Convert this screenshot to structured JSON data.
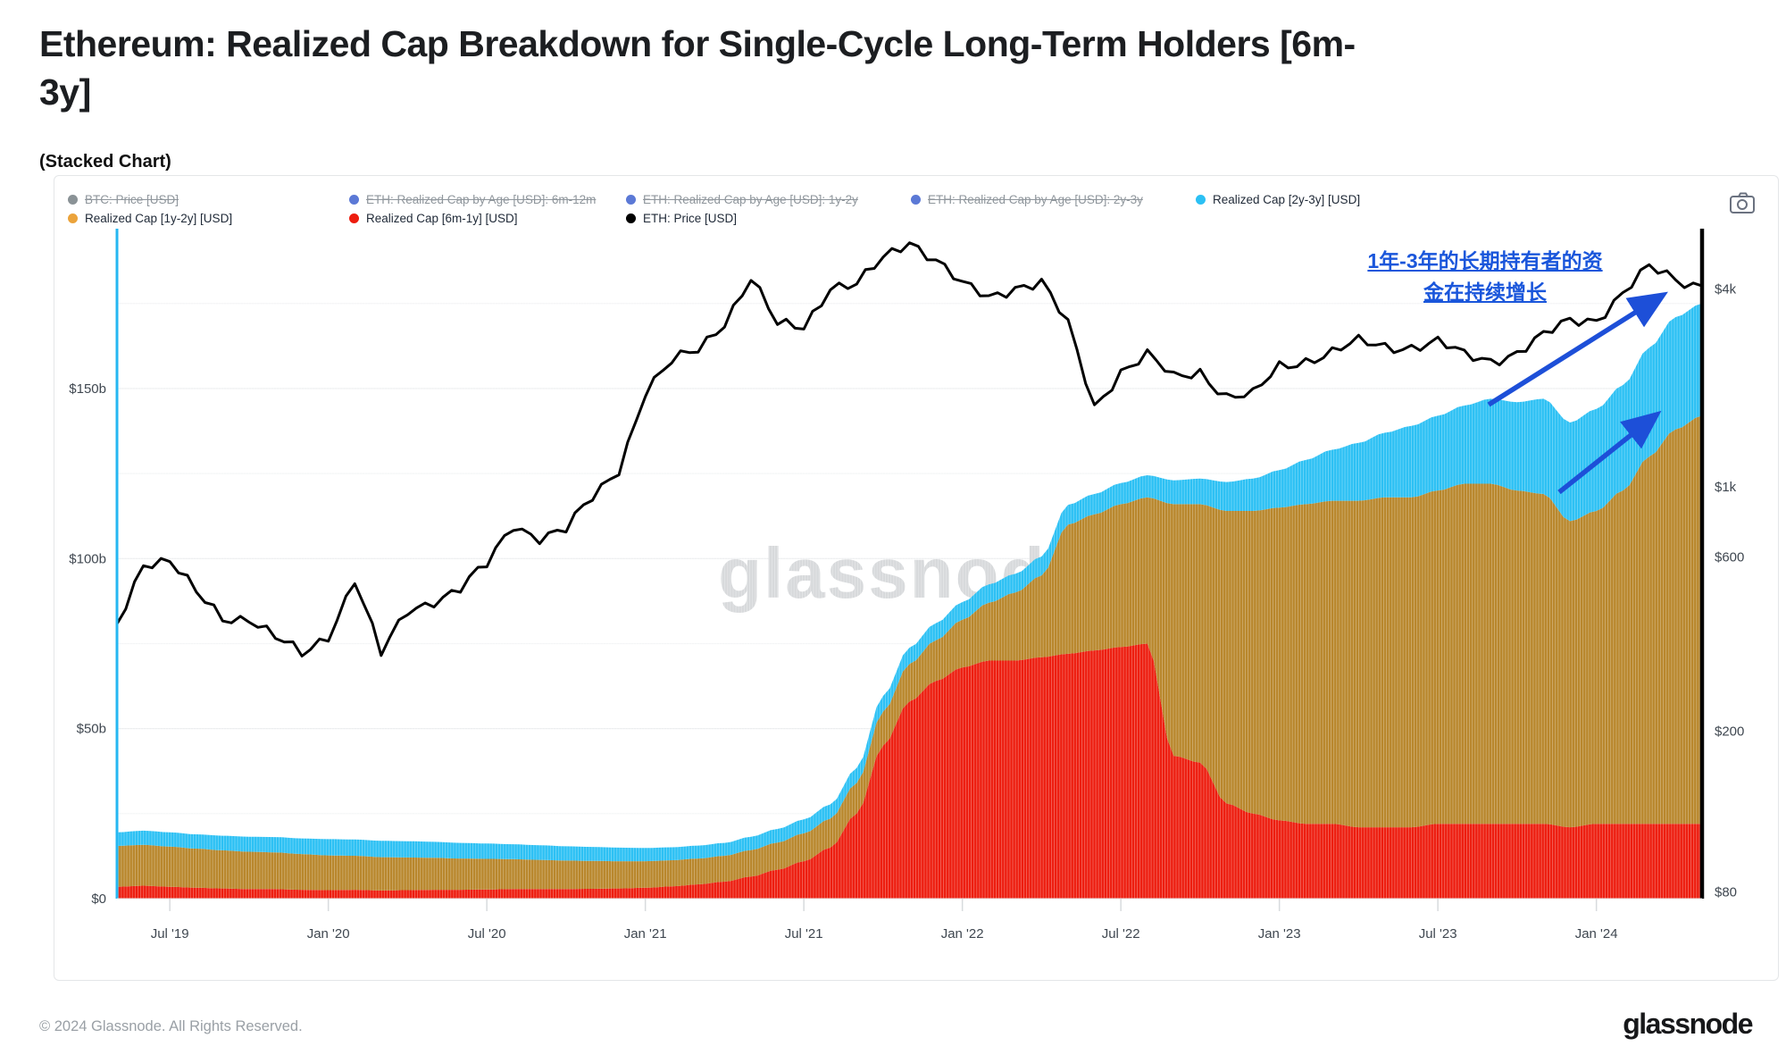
{
  "page": {
    "title": "Ethereum: Realized Cap Breakdown for Single-Cycle Long-Term Holders [6m-3y]",
    "chart_type_label": "(Stacked Chart)"
  },
  "footer": {
    "copyright": "© 2024 Glassnode. All Rights Reserved.",
    "brand": "glassnode"
  },
  "watermark": "glassnode",
  "annotation": {
    "text": "1年-3年的长期持有者的资金在持续增长",
    "line1": "1年-3年的长期持有者的资",
    "line2": "金在持续增长",
    "color": "#1a56db"
  },
  "colors": {
    "red": "#ed1c0e",
    "gold": "#b8862b",
    "cyan": "#2bc0f4",
    "price_line": "#000000",
    "annotation_blue": "#1d4fd8",
    "left_spine": "#25b7f2",
    "watermark_gray": "#d7d9db"
  },
  "legend": {
    "rows": [
      [
        {
          "label": "BTC: Price [USD]",
          "color": "#8a9296",
          "struck": true
        },
        {
          "label": "ETH: Realized Cap by Age [USD]: 6m-12m",
          "color": "#5b79d6",
          "struck": true
        },
        {
          "label": "ETH: Realized Cap by Age [USD]: 1y-2y",
          "color": "#5b79d6",
          "struck": true
        },
        {
          "label": "ETH: Realized Cap by Age [USD]: 2y-3y",
          "color": "#5b79d6",
          "struck": true
        },
        {
          "label": "Realized Cap [2y-3y] [USD]",
          "color": "#2bc0f4",
          "struck": false
        }
      ],
      [
        {
          "label": "Realized Cap [1y-2y] [USD]",
          "color": "#eba33b",
          "struck": false
        },
        {
          "label": "Realized Cap [6m-1y] [USD]",
          "color": "#ed1c0e",
          "struck": false
        },
        {
          "label": "ETH: Price [USD]",
          "color": "#000000",
          "struck": false
        }
      ]
    ]
  },
  "chart_data": {
    "type": "area",
    "subtype": "stacked-area-with-log-price-line",
    "title": "Ethereum: Realized Cap Breakdown for Single-Cycle Long-Term Holders [6m-3y]",
    "units": "billions USD (left axis), ETH price USD (right axis, log)",
    "left_axis": {
      "max": 197,
      "ticks": [
        {
          "value": 0,
          "label": "$0"
        },
        {
          "value": 50,
          "label": "$50b"
        },
        {
          "value": 100,
          "label": "$100b"
        },
        {
          "value": 150,
          "label": "$150b"
        }
      ]
    },
    "right_axis": {
      "scale": "log",
      "tick_labels": [
        "$4k",
        "$1k",
        "$600",
        "$200",
        "$80"
      ]
    },
    "x_ticks": [
      {
        "label": "Jul '19",
        "index": 2
      },
      {
        "label": "Jan '20",
        "index": 8
      },
      {
        "label": "Jul '20",
        "index": 14
      },
      {
        "label": "Jan '21",
        "index": 20
      },
      {
        "label": "Jul '21",
        "index": 26
      },
      {
        "label": "Jan '22",
        "index": 32
      },
      {
        "label": "Jul '22",
        "index": 38
      },
      {
        "label": "Jan '23",
        "index": 44
      },
      {
        "label": "Jul '23",
        "index": 50
      },
      {
        "label": "Jan '24",
        "index": 56
      }
    ],
    "categories": [
      "2019-05",
      "2019-06",
      "2019-07",
      "2019-08",
      "2019-09",
      "2019-10",
      "2019-11",
      "2019-12",
      "2020-01",
      "2020-02",
      "2020-03",
      "2020-04",
      "2020-05",
      "2020-06",
      "2020-07",
      "2020-08",
      "2020-09",
      "2020-10",
      "2020-11",
      "2020-12",
      "2021-01",
      "2021-02",
      "2021-03",
      "2021-04",
      "2021-05",
      "2021-06",
      "2021-07",
      "2021-08",
      "2021-09",
      "2021-10",
      "2021-11",
      "2021-12",
      "2022-01",
      "2022-02",
      "2022-03",
      "2022-04",
      "2022-05",
      "2022-06",
      "2022-07",
      "2022-08",
      "2022-09",
      "2022-10",
      "2022-11",
      "2022-12",
      "2023-01",
      "2023-02",
      "2023-03",
      "2023-04",
      "2023-05",
      "2023-06",
      "2023-07",
      "2023-08",
      "2023-09",
      "2023-10",
      "2023-11",
      "2023-12",
      "2024-01",
      "2024-02",
      "2024-03",
      "2024-04",
      "2024-05"
    ],
    "series": [
      {
        "name": "Realized Cap [6m-1y] [USD]",
        "color": "#ed1c0e",
        "stack": 1,
        "values": [
          3.5,
          3.8,
          3.5,
          3.2,
          3.0,
          2.8,
          2.8,
          2.6,
          2.5,
          2.6,
          2.4,
          2.5,
          2.6,
          2.6,
          2.7,
          2.8,
          2.8,
          2.8,
          2.9,
          3.0,
          3.2,
          3.6,
          4.2,
          5.0,
          6.5,
          8.5,
          11,
          15,
          25,
          45,
          58,
          64,
          68,
          70,
          70,
          71,
          72,
          73,
          74,
          75,
          42,
          40,
          28,
          25,
          23,
          22,
          22,
          21,
          21,
          21,
          22,
          22,
          22,
          22,
          22,
          21,
          22,
          22,
          22,
          22,
          22
        ]
      },
      {
        "name": "Realized Cap [1y-2y] [USD]",
        "color": "#b8862b",
        "stack": 2,
        "values": [
          12,
          12,
          11.8,
          11.5,
          11.2,
          11,
          10.8,
          10.5,
          10.2,
          10,
          9.8,
          9.6,
          9.4,
          9.2,
          9,
          8.8,
          8.6,
          8.4,
          8.2,
          8,
          7.8,
          7.7,
          7.6,
          7.6,
          7.8,
          8,
          8.2,
          8.5,
          9,
          10,
          11,
          12,
          14,
          17,
          20,
          24,
          38,
          40,
          42,
          43,
          74,
          76,
          86,
          89,
          92,
          94,
          95,
          96,
          97,
          97,
          98,
          100,
          100,
          98,
          97,
          90,
          92,
          98,
          108,
          116,
          120
        ]
      },
      {
        "name": "Realized Cap [2y-3y] [USD]",
        "color": "#2bc0f4",
        "stack": 3,
        "values": [
          4,
          4.2,
          4.2,
          4.2,
          4.3,
          4.4,
          4.5,
          4.6,
          4.8,
          4.8,
          4.8,
          4.8,
          4.7,
          4.6,
          4.5,
          4.4,
          4.3,
          4.2,
          4.1,
          4.0,
          3.9,
          3.8,
          3.8,
          3.8,
          3.9,
          4,
          4.1,
          4.2,
          4.4,
          4.6,
          4.8,
          5,
          5.2,
          5.4,
          5.5,
          5.6,
          5.8,
          6,
          6.2,
          6.5,
          7,
          7.5,
          8.5,
          9.5,
          11,
          13,
          15,
          17,
          19,
          21,
          22,
          23,
          25,
          26,
          28,
          29,
          30,
          31,
          32,
          33,
          33
        ]
      },
      {
        "name": "ETH: Price [USD]",
        "color": "#000000",
        "type": "line",
        "axis": "right",
        "values": [
          170,
          290,
          290,
          220,
          180,
          180,
          150,
          130,
          155,
          250,
          130,
          190,
          210,
          230,
          280,
          400,
          360,
          380,
          500,
          650,
          1250,
          1600,
          1800,
          2300,
          3300,
          2200,
          2200,
          3100,
          3100,
          3900,
          4600,
          3900,
          3100,
          2800,
          3100,
          3200,
          2200,
          1100,
          1500,
          1700,
          1400,
          1500,
          1200,
          1200,
          1550,
          1650,
          1750,
          1900,
          1850,
          1850,
          1900,
          1700,
          1650,
          1750,
          2000,
          2300,
          2350,
          2900,
          3600,
          3300,
          3100
        ]
      }
    ]
  }
}
